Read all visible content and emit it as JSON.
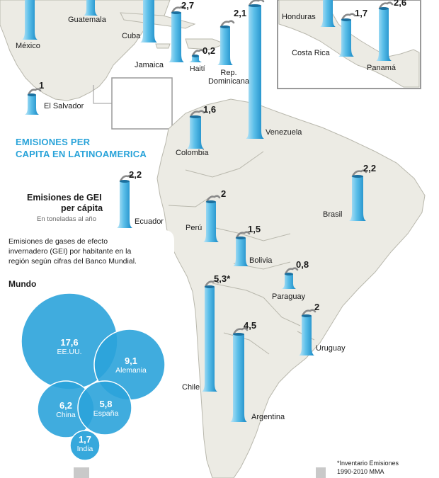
{
  "colors": {
    "land": "#ecebe4",
    "land_border": "#b9b8ad",
    "sea": "#ffffff",
    "accent": "#29a3d9",
    "bubble": "#2ba3da",
    "chimney_light": "#9fd7f1",
    "chimney_dark": "#1b8fca",
    "smoke": "#8a8a8a"
  },
  "title": {
    "line1": "EMISIONES PER",
    "line2": "CAPITA EN LATINOAMERICA"
  },
  "legend": {
    "value": "2,2",
    "title_line1": "Emisiones de GEI",
    "title_line2": "per cápita",
    "unit": "En toneladas al año"
  },
  "description": {
    "line1": "Emisiones de gases de efecto",
    "line2": "invernadero (GEI) por habitante en la",
    "line3": "región según cifras del Banco Mundial."
  },
  "world": {
    "heading": "Mundo",
    "items": [
      {
        "value": "17,6",
        "name": "EE.UU."
      },
      {
        "value": "9,1",
        "name": "Alemania"
      },
      {
        "value": "6,2",
        "name": "China"
      },
      {
        "value": "5,8",
        "name": "España"
      },
      {
        "value": "1,7",
        "name": "India"
      }
    ]
  },
  "countries": [
    {
      "name": "México",
      "value": ""
    },
    {
      "name": "Guatemala",
      "value": ""
    },
    {
      "name": "Cuba",
      "value": ""
    },
    {
      "name": "Jamaica",
      "value": "2,7"
    },
    {
      "name": "Haití",
      "value": "0,2"
    },
    {
      "name": "Rep. Dominicana",
      "value": "2,1"
    },
    {
      "name": "El Salvador",
      "value": "1"
    },
    {
      "name": "Honduras",
      "value": ""
    },
    {
      "name": "Costa Rica",
      "value": "1,7"
    },
    {
      "name": "Panamá",
      "value": "2,6"
    },
    {
      "name": "Venezuela",
      "value": ""
    },
    {
      "name": "Colombia",
      "value": "1,6"
    },
    {
      "name": "Ecuador",
      "value": ""
    },
    {
      "name": "Brasil",
      "value": "2,2"
    },
    {
      "name": "Perú",
      "value": "2"
    },
    {
      "name": "Bolivia",
      "value": "1,5"
    },
    {
      "name": "Paraguay",
      "value": "0,8"
    },
    {
      "name": "Chile",
      "value": "5,3*"
    },
    {
      "name": "Uruguay",
      "value": "2"
    },
    {
      "name": "Argentina",
      "value": "4,5"
    }
  ],
  "footnote": {
    "line1": "*Inventario Emisiones",
    "line2": "1990-2010 MMA"
  }
}
